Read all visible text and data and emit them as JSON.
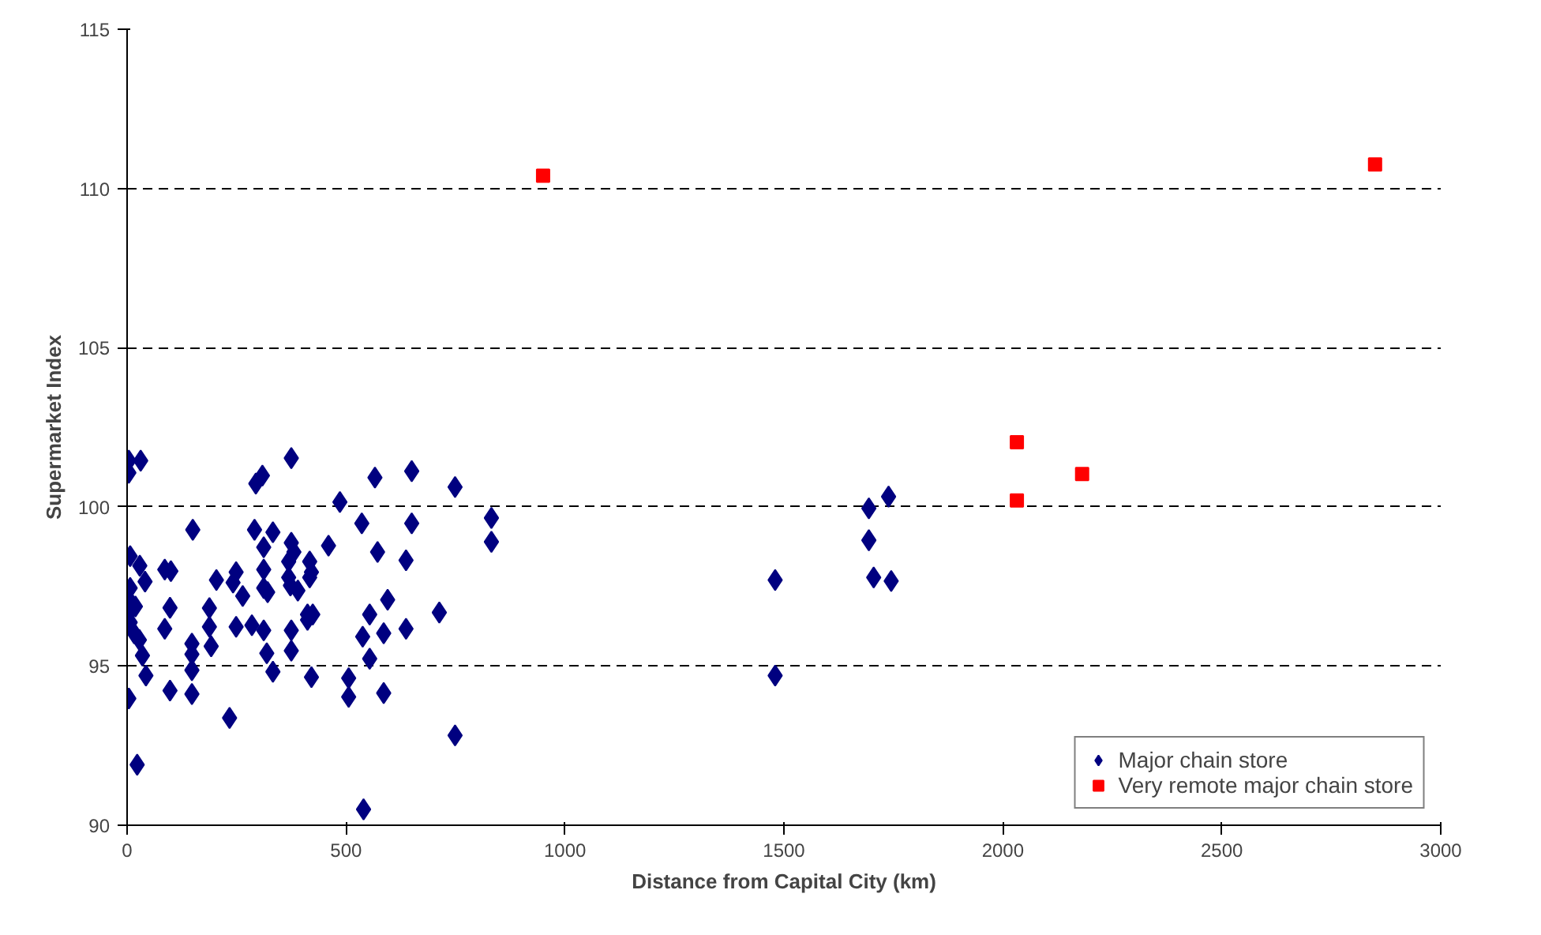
{
  "chart_data": {
    "type": "scatter",
    "xlabel": "Distance from Capital City (km)",
    "ylabel": "Supermarket Index",
    "xlim": [
      0,
      3000
    ],
    "xticks": [
      0,
      500,
      1000,
      1500,
      2000,
      2500,
      3000
    ],
    "ylim": [
      90,
      115
    ],
    "yticks": [
      90,
      95,
      100,
      105,
      110,
      115
    ],
    "grid": "y",
    "legend": "bottom right",
    "series": [
      {
        "name": "Major chain store",
        "color": "#000080",
        "marker": "diamond",
        "x": [
          4,
          31,
          4,
          375,
          309,
          294,
          566,
          650,
          749,
          486,
          150,
          291,
          333,
          312,
          375,
          381,
          460,
          536,
          650,
          572,
          637,
          7,
          29,
          86,
          100,
          41,
          7,
          204,
          249,
          242,
          312,
          369,
          369,
          417,
          421,
          417,
          264,
          312,
          321,
          373,
          390,
          595,
          713,
          7,
          19,
          98,
          188,
          1,
          7,
          16,
          28,
          35,
          86,
          188,
          249,
          285,
          312,
          375,
          412,
          424,
          412,
          192,
          148,
          148,
          148,
          319,
          375,
          554,
          538,
          586,
          637,
          554,
          43,
          333,
          421,
          506,
          506,
          586,
          98,
          148,
          4,
          234,
          749,
          23,
          540,
          832,
          832,
          1480,
          1480,
          1694,
          1739,
          1694,
          1705,
          1745
        ],
        "values": [
          101.45,
          101.45,
          101.07,
          101.53,
          100.98,
          100.73,
          100.92,
          101.12,
          100.62,
          100.15,
          99.28,
          99.28,
          99.2,
          98.73,
          98.87,
          98.58,
          98.78,
          99.48,
          99.48,
          98.58,
          98.32,
          98.45,
          98.15,
          98.03,
          97.98,
          97.65,
          97.45,
          97.7,
          97.95,
          97.62,
          98.03,
          98.28,
          97.78,
          98.28,
          97.95,
          97.78,
          97.2,
          97.45,
          97.32,
          97.53,
          97.37,
          97.08,
          96.68,
          97.03,
          96.87,
          96.83,
          96.82,
          96.62,
          96.37,
          96.03,
          95.82,
          95.33,
          96.17,
          96.23,
          96.23,
          96.28,
          96.12,
          96.12,
          96.45,
          96.62,
          96.62,
          95.62,
          95.7,
          95.37,
          94.87,
          95.4,
          95.48,
          96.62,
          95.92,
          96.03,
          96.17,
          95.23,
          94.7,
          94.82,
          94.65,
          94.62,
          94.03,
          94.15,
          94.23,
          94.12,
          93.98,
          93.37,
          92.82,
          91.9,
          90.5,
          99.65,
          98.9,
          97.7,
          94.7,
          99.95,
          100.32,
          98.95,
          97.78,
          97.67
        ]
      },
      {
        "name": "Very remote major chain store",
        "color": "#ff0000",
        "marker": "square",
        "x": [
          950,
          2032,
          2032,
          2181,
          2850
        ],
        "values": [
          110.4,
          102.03,
          100.2,
          101.03,
          110.75
        ]
      }
    ]
  }
}
